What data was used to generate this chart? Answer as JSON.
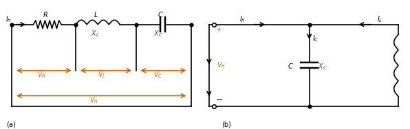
{
  "fig_width": 5.96,
  "fig_height": 1.88,
  "dpi": 100,
  "black": "#000000",
  "blue": "#4040C0",
  "orange": "#CC6600"
}
